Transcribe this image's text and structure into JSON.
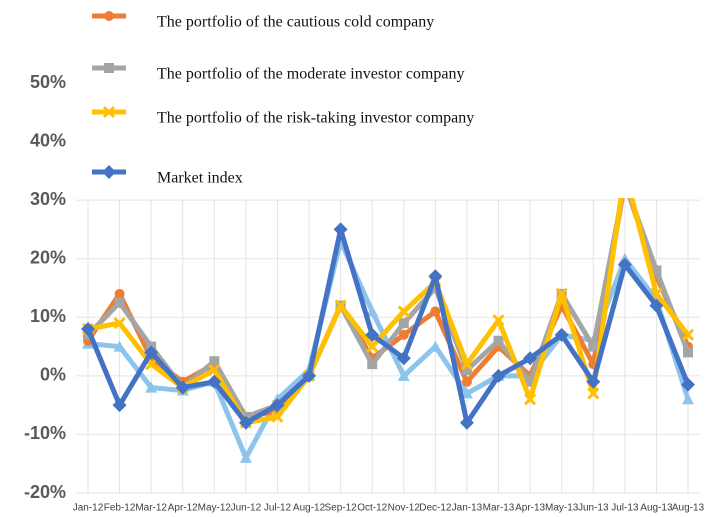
{
  "chart_data": {
    "type": "line",
    "categories": [
      "Jan-12",
      "Feb-12",
      "Mar-12",
      "Apr-12",
      "May-12",
      "Jun-12",
      "Jul-12",
      "Aug-12",
      "Sep-12",
      "Oct-12",
      "Nov-12",
      "Dec-12",
      "Jan-13",
      "Mar-13",
      "Apr-13",
      "May-13",
      "Jun-13",
      "Jul-13",
      "Aug-13",
      "Aug-13"
    ],
    "series": [
      {
        "name": null,
        "color": "#8cc4ec",
        "marker": "triangle",
        "values": [
          5.5,
          5,
          -2,
          -2.5,
          -1,
          -14,
          -4,
          1,
          23,
          11,
          0,
          5,
          -3,
          0,
          0,
          7,
          6,
          20,
          13,
          -4
        ]
      },
      {
        "name": "The portfolio of the cautious cold company",
        "color": "#ed7d31",
        "marker": "circle",
        "values": [
          6,
          14,
          3,
          -1,
          2,
          -7,
          -6,
          0,
          12,
          3,
          7,
          11,
          -1,
          5,
          0,
          12,
          2,
          33,
          17,
          5
        ]
      },
      {
        "name": "The portfolio of the moderate investor company",
        "color": "#a5a5a5",
        "marker": "square",
        "values": [
          7,
          12.5,
          5,
          -2,
          2.5,
          -7,
          -5,
          0,
          12,
          2,
          9,
          15,
          1,
          6,
          -1,
          14,
          5,
          33,
          18,
          4
        ]
      },
      {
        "name": "The portfolio of the risk-taking investor company",
        "color": "#ffc000",
        "marker": "cross",
        "values": [
          8,
          9,
          2,
          -2,
          1,
          -8,
          -7,
          0,
          12,
          5,
          11,
          16,
          2,
          9.5,
          -4,
          14,
          -3,
          35,
          14,
          7
        ]
      },
      {
        "name": "Market index",
        "color": "#4472c4",
        "marker": "diamond",
        "values": [
          8,
          -5,
          4,
          -2,
          -1,
          -8,
          -5,
          0,
          25,
          7,
          3,
          17,
          -8,
          0,
          3,
          7,
          -1,
          19,
          12,
          -1.5
        ]
      }
    ],
    "ylim": [
      -20,
      50
    ],
    "yticks": [
      {
        "value": -20,
        "label": "-20%"
      },
      {
        "value": -10,
        "label": "-10%"
      },
      {
        "value": 0,
        "label": "0%"
      },
      {
        "value": 10,
        "label": "10%"
      },
      {
        "value": 20,
        "label": "20%"
      },
      {
        "value": 30,
        "label": "30%"
      },
      {
        "value": 40,
        "label": "40%"
      },
      {
        "value": 50,
        "label": "50%"
      }
    ],
    "grid": true
  }
}
